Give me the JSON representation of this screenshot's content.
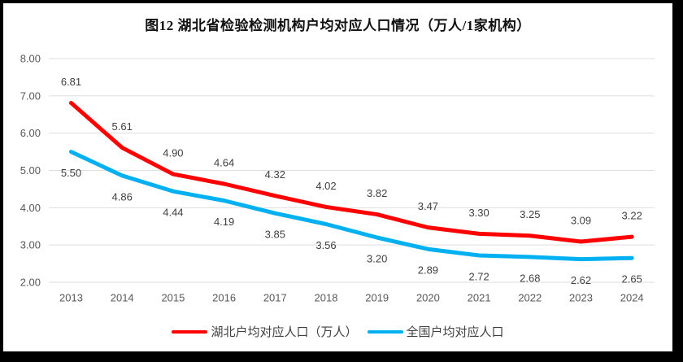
{
  "frame": {
    "border_color": "#000000",
    "background_color": "#ffffff"
  },
  "chart_data": {
    "type": "line",
    "title": "图12 湖北省检验检测机构户均对应人口情况（万人/1家机构）",
    "categories": [
      "2013",
      "2014",
      "2015",
      "2016",
      "2017",
      "2018",
      "2019",
      "2020",
      "2021",
      "2022",
      "2023",
      "2024"
    ],
    "series": [
      {
        "name": "湖北户均对应人口（万人）",
        "color": "#ff0000",
        "values": [
          6.81,
          5.61,
          4.9,
          4.64,
          4.32,
          4.02,
          3.82,
          3.47,
          3.3,
          3.25,
          3.09,
          3.22
        ],
        "label_position": "above"
      },
      {
        "name": "全国户均对应人口",
        "color": "#00b0f0",
        "values": [
          5.5,
          4.86,
          4.44,
          4.19,
          3.85,
          3.56,
          3.2,
          2.89,
          2.72,
          2.68,
          2.62,
          2.65
        ],
        "label_position": "below"
      }
    ],
    "y_axis": {
      "min": 2,
      "max": 8,
      "step": 1,
      "tick_labels": [
        "8.00",
        "7.00",
        "6.00",
        "5.00",
        "4.00",
        "3.00",
        "2.00"
      ]
    },
    "grid": true,
    "gridline_color": "#dedede",
    "axis_label_color": "#595959",
    "data_label_color": "#404040",
    "data_label_decimals": 2,
    "legend_position": "bottom"
  }
}
